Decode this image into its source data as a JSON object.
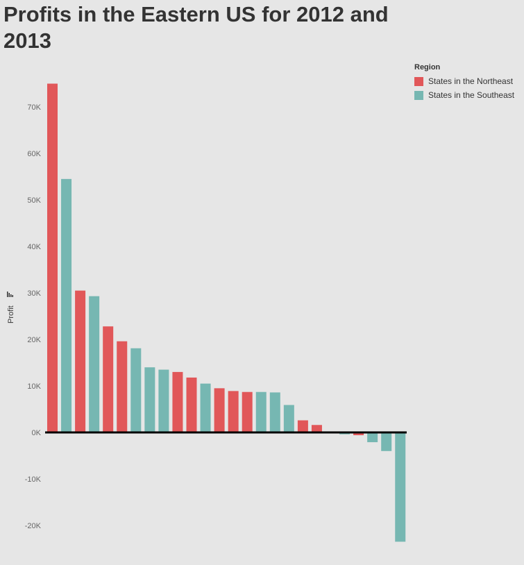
{
  "title": "Profits in the Eastern US for 2012 and 2013",
  "colors": {
    "Northeast": "#e15759",
    "Southeast": "#76b7b2",
    "background": "#e6e6e6",
    "zero_line": "#000000"
  },
  "legend": {
    "title": "Region",
    "items": [
      {
        "name": "States in the Northeast",
        "color": "#e15759"
      },
      {
        "name": "States in the Southeast",
        "color": "#76b7b2"
      }
    ]
  },
  "chart_data": {
    "type": "bar",
    "title": "Profits in the Eastern US for 2012 and 2013",
    "ylabel": "Profit",
    "ylim": [
      -25000,
      75000
    ],
    "y_ticks": [
      {
        "value": 70000,
        "label": "70K"
      },
      {
        "value": 60000,
        "label": "60K"
      },
      {
        "value": 50000,
        "label": "50K"
      },
      {
        "value": 40000,
        "label": "40K"
      },
      {
        "value": 30000,
        "label": "30K"
      },
      {
        "value": 20000,
        "label": "20K"
      },
      {
        "value": 10000,
        "label": "10K"
      },
      {
        "value": 0,
        "label": "0K"
      },
      {
        "value": -10000,
        "label": "-10K"
      },
      {
        "value": -20000,
        "label": "-20K"
      }
    ],
    "legend_position": "top-right",
    "grid": false,
    "bars": [
      {
        "region": "Northeast",
        "value": 75000
      },
      {
        "region": "Southeast",
        "value": 54500
      },
      {
        "region": "Northeast",
        "value": 30500
      },
      {
        "region": "Southeast",
        "value": 29300
      },
      {
        "region": "Northeast",
        "value": 22800
      },
      {
        "region": "Northeast",
        "value": 19600
      },
      {
        "region": "Southeast",
        "value": 18100
      },
      {
        "region": "Southeast",
        "value": 14000
      },
      {
        "region": "Southeast",
        "value": 13500
      },
      {
        "region": "Northeast",
        "value": 13000
      },
      {
        "region": "Northeast",
        "value": 11800
      },
      {
        "region": "Southeast",
        "value": 10500
      },
      {
        "region": "Northeast",
        "value": 9500
      },
      {
        "region": "Northeast",
        "value": 8900
      },
      {
        "region": "Northeast",
        "value": 8700
      },
      {
        "region": "Southeast",
        "value": 8700
      },
      {
        "region": "Southeast",
        "value": 8600
      },
      {
        "region": "Southeast",
        "value": 5900
      },
      {
        "region": "Northeast",
        "value": 2600
      },
      {
        "region": "Northeast",
        "value": 1600
      },
      {
        "region": "Southeast",
        "value": 200
      },
      {
        "region": "Southeast",
        "value": -400
      },
      {
        "region": "Northeast",
        "value": -600
      },
      {
        "region": "Southeast",
        "value": -2100
      },
      {
        "region": "Southeast",
        "value": -4000
      },
      {
        "region": "Southeast",
        "value": -23500
      }
    ]
  }
}
